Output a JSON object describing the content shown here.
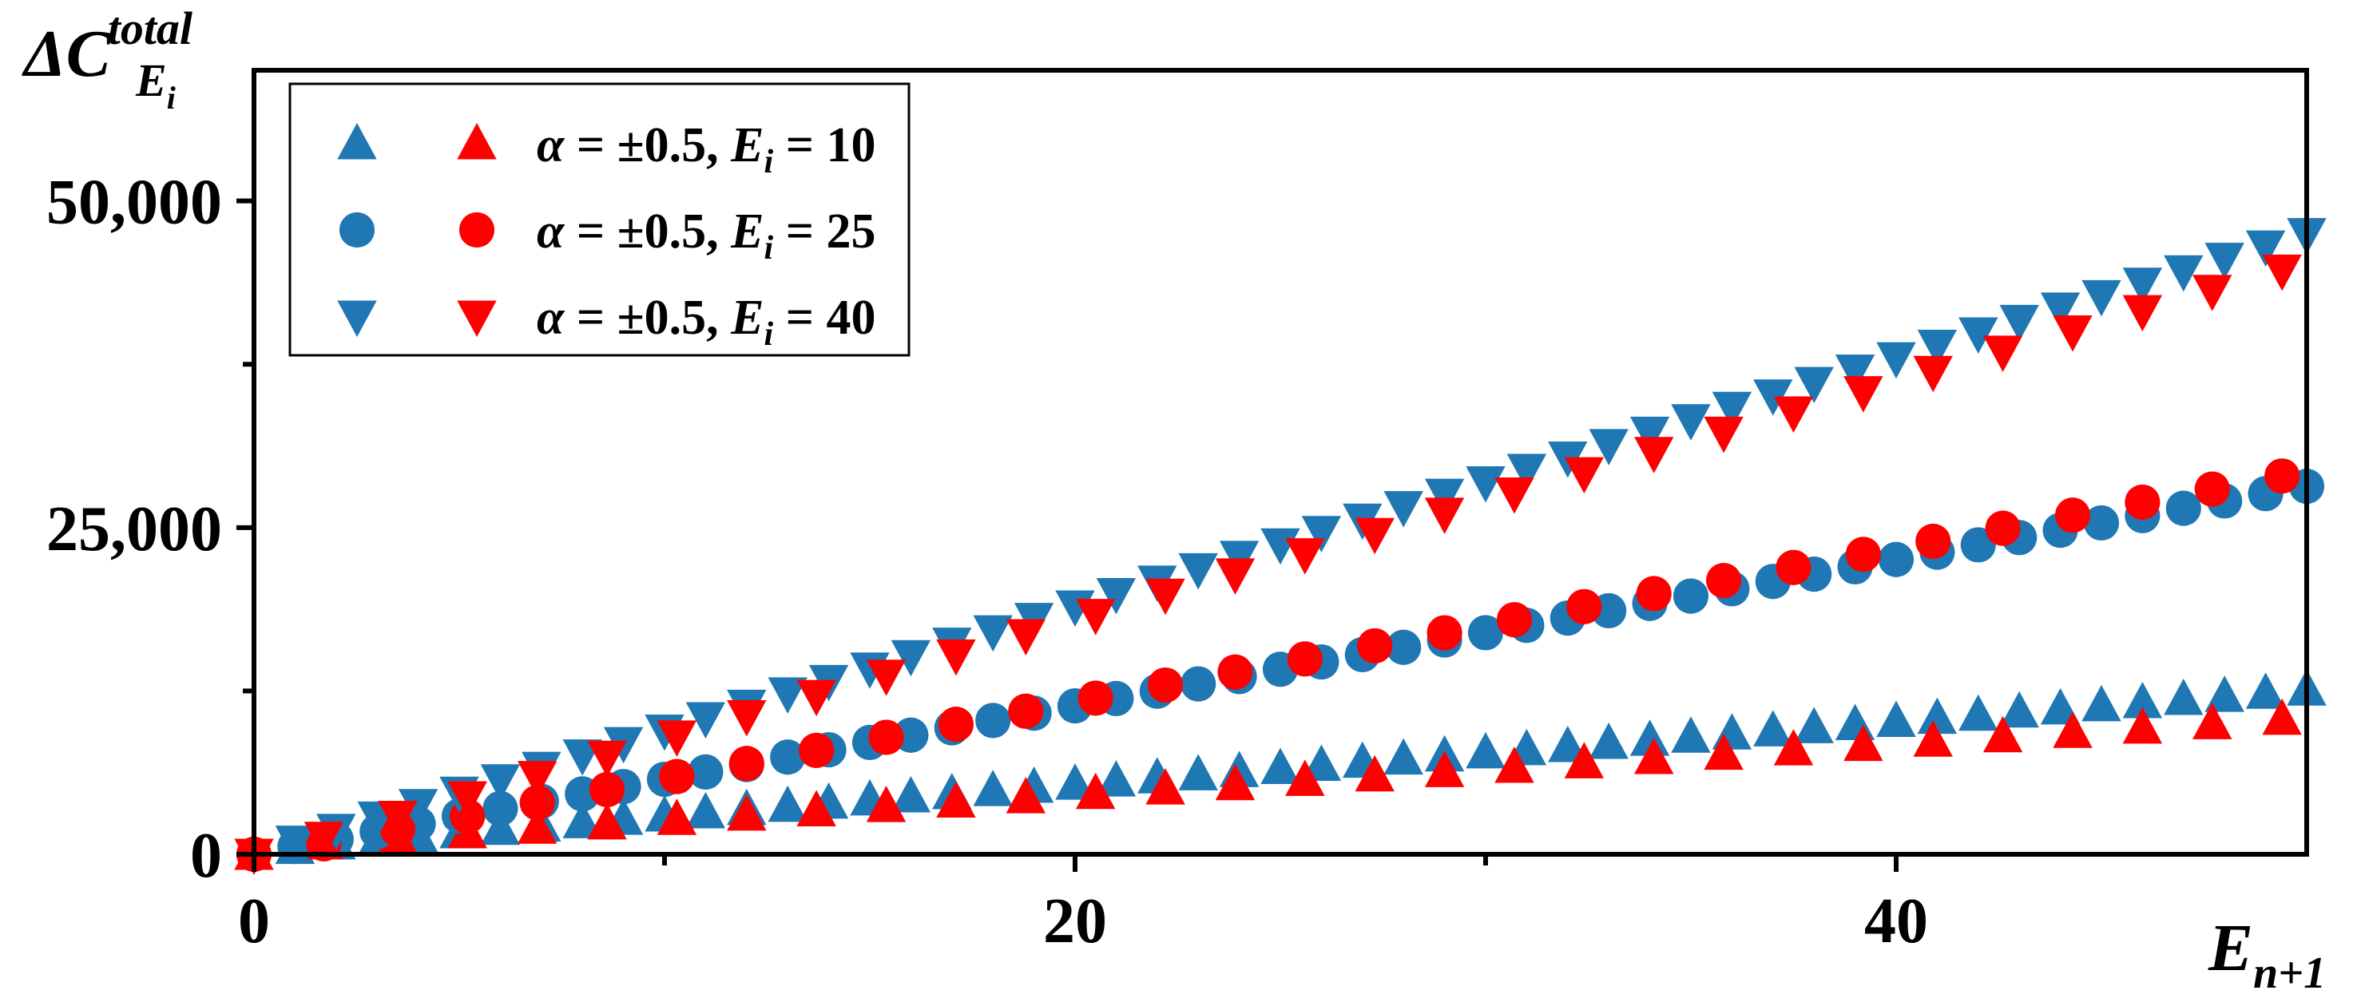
{
  "chart_data": {
    "type": "scatter",
    "title": "",
    "ylabel": {
      "main": "ΔC",
      "sup": "total",
      "sub_base": "E",
      "sub_sub": "i"
    },
    "xlabel": {
      "main": "E",
      "sub": "n+1"
    },
    "xlim": [
      0,
      50
    ],
    "ylim": [
      0,
      60000
    ],
    "xticks": [
      0,
      20,
      40
    ],
    "xtick_labels": [
      "0",
      "20",
      "40"
    ],
    "xminor_ticks": [
      10,
      30
    ],
    "yticks": [
      0,
      25000,
      50000
    ],
    "ytick_labels": [
      "0",
      "25,000",
      "50,000"
    ],
    "yminor_ticks": [
      12500,
      37500
    ],
    "grid": false,
    "legend_position": "top-left",
    "colors": {
      "alpha_negative": "#1f77b4",
      "alpha_positive": "#ff0000",
      "axes": "#000000"
    },
    "legend": [
      {
        "marker": "triangle-up",
        "label_prefix": "α = ±0.5, ",
        "label_var": "E",
        "label_sub": "i",
        "label_suffix": " = 10"
      },
      {
        "marker": "circle",
        "label_prefix": "α = ±0.5, ",
        "label_var": "E",
        "label_sub": "i",
        "label_suffix": " = 25"
      },
      {
        "marker": "triangle-down",
        "label_prefix": "α = ±0.5, ",
        "label_var": "E",
        "label_sub": "i",
        "label_suffix": " = 40"
      }
    ],
    "series": [
      {
        "name": "α = ±0.5, Ei = 10",
        "marker": "triangle-up",
        "color": "#1f77b4",
        "x": [
          1,
          2,
          3,
          4,
          5,
          6,
          7,
          8,
          9,
          10,
          11,
          12,
          13,
          14,
          15,
          16,
          17,
          18,
          19,
          20,
          21,
          22,
          23,
          24,
          25,
          26,
          27,
          28,
          29,
          30,
          31,
          32,
          33,
          34,
          35,
          36,
          37,
          38,
          39,
          40,
          41,
          42,
          43,
          44,
          45,
          46,
          47,
          48,
          49,
          50
        ],
        "y": [
          450,
          800,
          1080,
          1370,
          1650,
          1910,
          2160,
          2420,
          2680,
          2930,
          3180,
          3430,
          3670,
          3920,
          4160,
          4400,
          4640,
          4880,
          5130,
          5370,
          5610,
          5850,
          6090,
          6330,
          6570,
          6810,
          7050,
          7290,
          7530,
          7770,
          8010,
          8250,
          8490,
          8730,
          8970,
          9210,
          9450,
          9690,
          9930,
          10170,
          10410,
          10650,
          10890,
          11130,
          11370,
          11610,
          11850,
          12090,
          12330,
          12570
        ]
      },
      {
        "name": "α = ±0.5, Ei = 10",
        "marker": "triangle-up",
        "color": "#ff0000",
        "x": [
          0,
          1.7,
          3.5,
          5.2,
          6.9,
          8.6,
          10.3,
          12.0,
          13.7,
          15.4,
          17.1,
          18.8,
          20.5,
          22.2,
          23.9,
          25.6,
          27.3,
          29.0,
          30.7,
          32.4,
          34.1,
          35.8,
          37.5,
          39.2,
          40.9,
          42.6,
          44.3,
          46.0,
          47.7,
          49.4
        ],
        "y": [
          0,
          800,
          1250,
          1650,
          2000,
          2330,
          2670,
          3000,
          3330,
          3660,
          4000,
          4330,
          4660,
          5000,
          5330,
          5660,
          6000,
          6330,
          6660,
          7000,
          7330,
          7660,
          8000,
          8330,
          8660,
          9000,
          9330,
          9660,
          10000,
          10330
        ]
      },
      {
        "name": "α = ±0.5, Ei = 25",
        "marker": "circle",
        "color": "#1f77b4",
        "x": [
          1,
          2,
          3,
          4,
          5,
          6,
          7,
          8,
          9,
          10,
          11,
          12,
          13,
          14,
          15,
          16,
          17,
          18,
          19,
          20,
          21,
          22,
          23,
          24,
          25,
          26,
          27,
          28,
          29,
          30,
          31,
          32,
          33,
          34,
          35,
          36,
          37,
          38,
          39,
          40,
          41,
          42,
          43,
          44,
          45,
          46,
          47,
          48,
          49,
          50
        ],
        "y": [
          600,
          1150,
          1750,
          2330,
          2930,
          3500,
          4050,
          4620,
          5180,
          5740,
          6300,
          6870,
          7440,
          8000,
          8560,
          9120,
          9680,
          10240,
          10800,
          11360,
          11920,
          12480,
          13040,
          13600,
          14160,
          14720,
          15280,
          15840,
          16400,
          16960,
          17520,
          18080,
          18640,
          19200,
          19760,
          20320,
          20880,
          21440,
          22000,
          22560,
          23120,
          23680,
          24240,
          24800,
          25360,
          25920,
          26480,
          27040,
          27600,
          28160
        ]
      },
      {
        "name": "α = ±0.5, Ei = 25",
        "marker": "circle",
        "color": "#ff0000",
        "x": [
          0,
          1.7,
          3.5,
          5.2,
          6.9,
          8.6,
          10.3,
          12.0,
          13.7,
          15.4,
          17.1,
          18.8,
          20.5,
          22.2,
          23.9,
          25.6,
          27.3,
          29.0,
          30.7,
          32.4,
          34.1,
          35.8,
          37.5,
          39.2,
          40.9,
          42.6,
          44.3,
          46.0,
          47.7,
          49.4
        ],
        "y": [
          0,
          800,
          1900,
          2900,
          3950,
          4950,
          5950,
          6950,
          7950,
          8950,
          9950,
          10950,
          11950,
          12950,
          13950,
          14950,
          15950,
          16950,
          17950,
          18950,
          19950,
          20950,
          21950,
          22950,
          23950,
          24950,
          25950,
          26950,
          27950,
          28950
        ]
      },
      {
        "name": "α = ±0.5, Ei = 40",
        "marker": "triangle-down",
        "color": "#1f77b4",
        "x": [
          1,
          2,
          3,
          4,
          5,
          6,
          7,
          8,
          9,
          10,
          11,
          12,
          13,
          14,
          15,
          16,
          17,
          18,
          19,
          20,
          21,
          22,
          23,
          24,
          25,
          26,
          27,
          28,
          29,
          30,
          31,
          32,
          33,
          34,
          35,
          36,
          37,
          38,
          39,
          40,
          41,
          42,
          43,
          44,
          45,
          46,
          47,
          48,
          49,
          50
        ],
        "y": [
          1000,
          1900,
          2850,
          3800,
          4750,
          5700,
          6650,
          7600,
          8550,
          9500,
          10450,
          11400,
          12350,
          13300,
          14250,
          15200,
          16150,
          17100,
          18050,
          19000,
          19950,
          20900,
          21850,
          22800,
          23750,
          24700,
          25650,
          26600,
          27550,
          28500,
          29450,
          30400,
          31350,
          32300,
          33250,
          34200,
          35150,
          36100,
          37050,
          38000,
          38950,
          39900,
          40850,
          41800,
          42750,
          43700,
          44650,
          45600,
          46550,
          47500
        ]
      },
      {
        "name": "α = ±0.5, Ei = 40",
        "marker": "triangle-down",
        "color": "#ff0000",
        "x": [
          0,
          1.7,
          3.5,
          5.2,
          6.9,
          8.6,
          10.3,
          12.0,
          13.7,
          15.4,
          17.1,
          18.8,
          20.5,
          22.2,
          23.9,
          25.6,
          27.3,
          29.0,
          30.7,
          32.4,
          34.1,
          35.8,
          37.5,
          39.2,
          40.9,
          42.6,
          44.3,
          46.0,
          47.7,
          49.4
        ],
        "y": [
          0,
          1300,
          2900,
          4400,
          5950,
          7500,
          9050,
          10600,
          12150,
          13700,
          15250,
          16800,
          18350,
          19900,
          21450,
          23000,
          24550,
          26100,
          27650,
          29200,
          30750,
          32300,
          33850,
          35400,
          36950,
          38500,
          40050,
          41600,
          43150,
          44700
        ]
      }
    ]
  }
}
